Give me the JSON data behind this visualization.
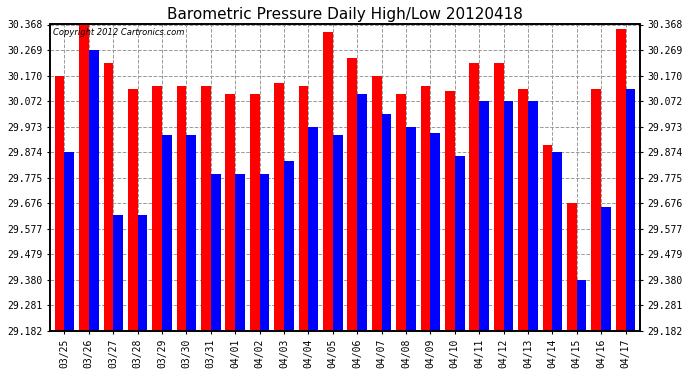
{
  "title": "Barometric Pressure Daily High/Low 20120418",
  "copyright": "Copyright 2012 Cartronics.com",
  "dates": [
    "03/25",
    "03/26",
    "03/27",
    "03/28",
    "03/29",
    "03/30",
    "03/31",
    "04/01",
    "04/02",
    "04/03",
    "04/04",
    "04/05",
    "04/06",
    "04/07",
    "04/08",
    "04/09",
    "04/10",
    "04/11",
    "04/12",
    "04/13",
    "04/14",
    "04/15",
    "04/16",
    "04/17"
  ],
  "highs": [
    30.17,
    30.368,
    30.22,
    30.12,
    30.13,
    30.13,
    30.13,
    30.1,
    30.1,
    30.14,
    30.13,
    30.34,
    30.24,
    30.17,
    30.1,
    30.13,
    30.11,
    30.22,
    30.22,
    30.12,
    29.9,
    29.676,
    30.12,
    30.35
  ],
  "lows": [
    29.874,
    30.269,
    29.63,
    29.63,
    29.94,
    29.94,
    29.79,
    29.79,
    29.79,
    29.84,
    29.973,
    29.94,
    30.1,
    30.02,
    29.973,
    29.95,
    29.86,
    30.072,
    30.072,
    30.072,
    29.874,
    29.38,
    29.66,
    30.12
  ],
  "ymin": 29.182,
  "ymax": 30.368,
  "yticks": [
    29.182,
    29.281,
    29.38,
    29.479,
    29.577,
    29.676,
    29.775,
    29.874,
    29.973,
    30.072,
    30.17,
    30.269,
    30.368
  ],
  "high_color": "#ff0000",
  "low_color": "#0000ff",
  "bg_color": "#ffffff",
  "plot_bg": "#ffffff",
  "grid_color": "#999999",
  "title_fontsize": 11,
  "bar_width": 0.4
}
